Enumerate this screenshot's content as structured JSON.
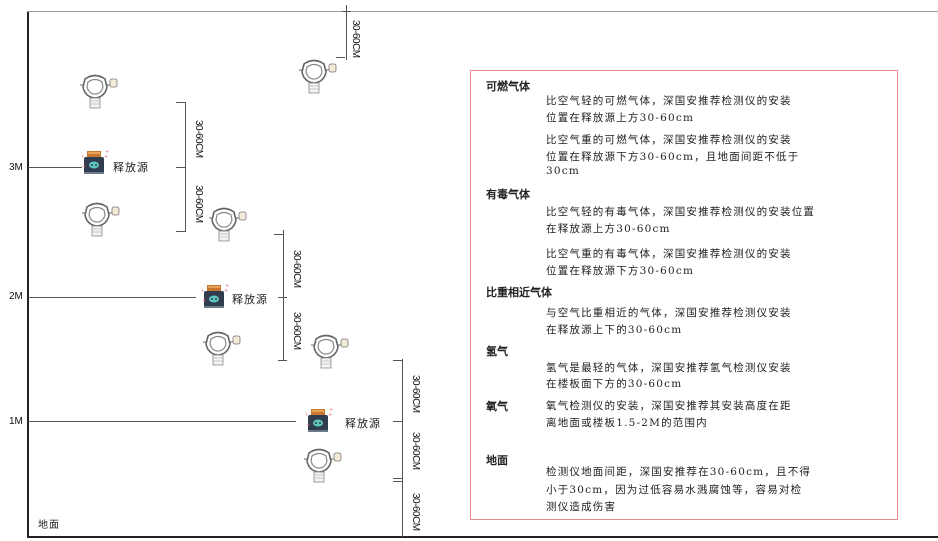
{
  "levels": {
    "m3": "3M",
    "m2": "2M",
    "m1": "1M",
    "ground": "地面"
  },
  "source_label": "释放源",
  "dimension_label": "30-60CM",
  "colors": {
    "frame": "#444444",
    "text_box_border": "#e88a8a",
    "source_body": "#2f3d4f",
    "source_cap": "#c8772e"
  },
  "icons": {
    "detector": "gas-detector-icon",
    "source": "release-source-icon"
  },
  "notes": {
    "combustible": {
      "title": "可燃气体",
      "lighter": [
        "比空气轻的可燃气体，深国安推荐检测仪的安装",
        "位置在释放源上方30-60cm"
      ],
      "heavier": [
        "比空气重的可燃气体，深国安推荐检测仪的安装",
        "位置在释放源下方30-60cm，且地面间距不低于",
        "30cm"
      ]
    },
    "toxic": {
      "title": "有毒气体",
      "lighter": [
        "比空气轻的有毒气体，深国安推荐检测仪的安装位置",
        "在释放源上方30-60cm"
      ],
      "heavier": [
        "比空气重的有毒气体，深国安推荐检测仪的安装",
        "位置在释放源下方30-60cm"
      ]
    },
    "similar": {
      "title": "比重相近气体",
      "body": [
        "与空气比重相近的气体，深国安推荐检测仪安装",
        "在释放源上下的30-60cm"
      ]
    },
    "hydrogen": {
      "title": "氢气",
      "body": [
        "氢气是最轻的气体，深国安推荐氢气检测仪安装",
        "在楼板面下方的30-60cm"
      ]
    },
    "oxygen": {
      "title": "氧气",
      "body": [
        "氧气检测仪的安装，深国安推荐其安装高度在距",
        "离地面或楼板1.5-2M的范围内"
      ]
    },
    "ground": {
      "title": "地面",
      "body": [
        "检测仪地面间距，深国安推荐在30-60cm，且不得",
        "小于30cm，因为过低容易水溅腐蚀等，容易对检",
        "测仪造成伤害"
      ]
    }
  }
}
